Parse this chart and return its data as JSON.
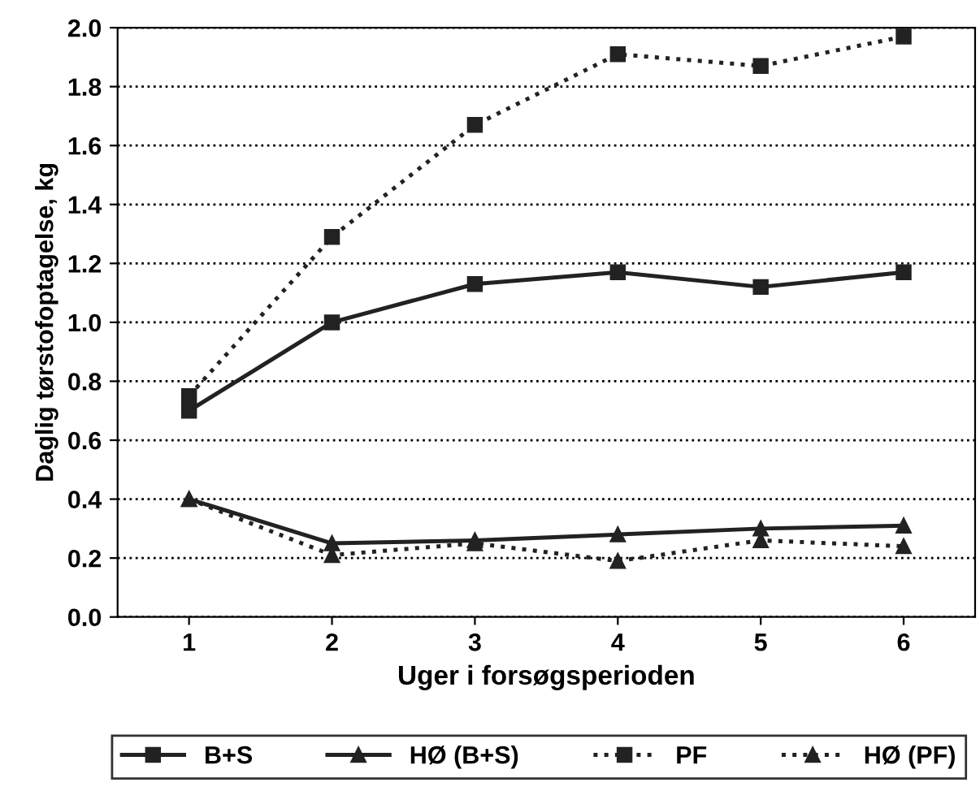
{
  "chart_data": {
    "type": "line",
    "xlabel": "Uger i forsøgsperioden",
    "ylabel": "Daglig tørstofoptagelse, kg",
    "x": [
      1,
      2,
      3,
      4,
      5,
      6
    ],
    "series": [
      {
        "name": "B+S",
        "color": "#222222",
        "marker": "square",
        "line_style": "solid",
        "values": [
          0.7,
          1.0,
          1.13,
          1.17,
          1.12,
          1.17
        ]
      },
      {
        "name": "HØ (B+S)",
        "color": "#222222",
        "marker": "triangle",
        "line_style": "solid",
        "values": [
          0.4,
          0.25,
          0.26,
          0.28,
          0.3,
          0.31
        ]
      },
      {
        "name": "PF",
        "color": "#222222",
        "marker": "square",
        "line_style": "dotted",
        "values": [
          0.75,
          1.29,
          1.67,
          1.91,
          1.87,
          1.97
        ]
      },
      {
        "name": "HØ (PF)",
        "color": "#222222",
        "marker": "triangle",
        "line_style": "dotted",
        "values": [
          0.4,
          0.21,
          0.25,
          0.19,
          0.26,
          0.24
        ]
      }
    ],
    "xlim": [
      0.5,
      6.5
    ],
    "xticks": [
      1,
      2,
      3,
      4,
      5,
      6
    ],
    "ylim": [
      0,
      2.0
    ],
    "yticks": [
      {
        "value": 0,
        "label": "0.0"
      },
      {
        "value": 0.2,
        "label": "0.2"
      },
      {
        "value": 0.4,
        "label": "0.4"
      },
      {
        "value": 0.6,
        "label": "0.6"
      },
      {
        "value": 0.8,
        "label": "0.8"
      },
      {
        "value": 1.0,
        "label": "1.0"
      },
      {
        "value": 1.2,
        "label": "1.2"
      },
      {
        "value": 1.4,
        "label": "1.4"
      },
      {
        "value": 1.6,
        "label": "1.6"
      },
      {
        "value": 1.8,
        "label": "1.8"
      },
      {
        "value": 2.0,
        "label": "2.0"
      }
    ],
    "grid": "y",
    "legend": "bottom"
  }
}
